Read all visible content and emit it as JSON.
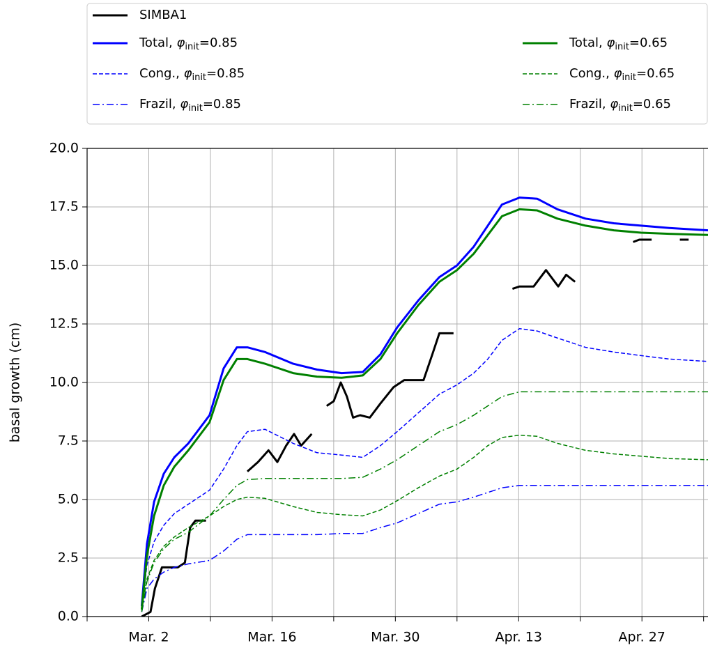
{
  "chart_data": {
    "type": "line",
    "ylabel": "basal growth (cm)",
    "xlim": [
      54,
      124.5
    ],
    "xticks": [
      {
        "value": 61,
        "label": "Mar. 2"
      },
      {
        "value": 75,
        "label": "Mar. 16"
      },
      {
        "value": 89,
        "label": "Mar. 30"
      },
      {
        "value": 103,
        "label": "Apr. 13"
      },
      {
        "value": 117,
        "label": "Apr. 27"
      }
    ],
    "xminorticks": [
      54,
      68,
      82,
      96,
      110,
      124
    ],
    "ylim": [
      0,
      20
    ],
    "yticks": [
      {
        "value": 0,
        "label": "0.0"
      },
      2.5,
      {
        "value": 5,
        "label": "5.0"
      },
      7.5,
      {
        "value": 10,
        "label": "10.0"
      },
      12.5,
      {
        "value": 15,
        "label": "15.0"
      },
      17.5,
      {
        "value": 20,
        "label": "20.0"
      }
    ],
    "grid": true,
    "legend": "top",
    "series": [
      {
        "name": "SIMBA1",
        "color": "#000000",
        "linestyle": "solid",
        "x": [
          60.2,
          61.2,
          61.7,
          62.5,
          64.3,
          65.1,
          65.7,
          66.3,
          67.5,
          null,
          72.2,
          73.4,
          74.6,
          75.6,
          76.6,
          77.5,
          78.3,
          79.5,
          null,
          81.2,
          82.0,
          82.8,
          83.5,
          84.2,
          85.0,
          86.1,
          87.3,
          88.8,
          90.0,
          92.2,
          93.2,
          94.0,
          95.6,
          null,
          102.3,
          103.1,
          104.7,
          106.1,
          107.5,
          108.4,
          109.4,
          null,
          116.0,
          116.7,
          118.1,
          null,
          121.3,
          122.3
        ],
        "values": [
          0.0,
          0.2,
          1.2,
          2.1,
          2.1,
          2.3,
          3.8,
          4.1,
          4.1,
          null,
          6.2,
          6.6,
          7.1,
          6.6,
          7.3,
          7.8,
          7.3,
          7.8,
          null,
          9.0,
          9.2,
          10.0,
          9.4,
          8.5,
          8.6,
          8.5,
          9.1,
          9.8,
          10.1,
          10.1,
          11.2,
          12.1,
          12.1,
          null,
          14.0,
          14.1,
          14.1,
          14.8,
          14.1,
          14.6,
          14.3,
          null,
          16.0,
          16.1,
          16.1,
          null,
          16.1,
          16.1
        ]
      },
      {
        "name": "Total, φinit=0.85",
        "color": "#0000ff",
        "linestyle": "solid",
        "x": [
          60.2,
          60.8,
          61.6,
          62.7,
          63.9,
          65.5,
          67.9,
          69.5,
          71.0,
          72.2,
          74.2,
          77.4,
          80.1,
          82.9,
          85.3,
          87.3,
          89.2,
          91.6,
          94.0,
          96.0,
          97.9,
          99.5,
          101.1,
          103.1,
          105.1,
          107.4,
          110.6,
          113.8,
          116.9,
          120.1,
          124.5
        ],
        "values": [
          0.45,
          3.1,
          4.9,
          6.1,
          6.8,
          7.4,
          8.6,
          10.6,
          11.5,
          11.5,
          11.3,
          10.8,
          10.55,
          10.4,
          10.45,
          11.2,
          12.35,
          13.5,
          14.5,
          15.0,
          15.8,
          16.7,
          17.6,
          17.9,
          17.85,
          17.4,
          17.0,
          16.8,
          16.7,
          16.6,
          16.5
        ]
      },
      {
        "name": "Cong., φinit=0.85",
        "color": "#0000ff",
        "linestyle": "dashed",
        "x": [
          60.2,
          60.8,
          61.6,
          62.7,
          63.9,
          65.5,
          67.9,
          69.5,
          71.0,
          72.2,
          74.2,
          77.4,
          80.1,
          82.9,
          85.3,
          87.3,
          89.2,
          91.6,
          94.0,
          96.0,
          97.9,
          99.5,
          101.1,
          103.1,
          105.1,
          107.4,
          110.6,
          113.8,
          116.9,
          120.1,
          124.5
        ],
        "values": [
          0.3,
          2.2,
          3.2,
          3.9,
          4.4,
          4.8,
          5.4,
          6.3,
          7.3,
          7.9,
          8.0,
          7.4,
          7.0,
          6.9,
          6.8,
          7.3,
          7.9,
          8.7,
          9.5,
          9.9,
          10.4,
          11.0,
          11.8,
          12.3,
          12.2,
          11.9,
          11.5,
          11.3,
          11.15,
          11.0,
          10.9
        ]
      },
      {
        "name": "Frazil, φinit=0.85",
        "color": "#0000ff",
        "linestyle": "dashdot",
        "x": [
          60.2,
          60.8,
          61.6,
          62.7,
          63.9,
          65.5,
          67.9,
          69.5,
          71.0,
          72.2,
          74.2,
          77.4,
          80.1,
          82.9,
          85.3,
          87.3,
          89.2,
          91.6,
          94.0,
          96.0,
          97.9,
          99.5,
          101.1,
          103.1,
          105.1,
          107.4,
          110.6,
          113.8,
          116.9,
          120.1,
          124.5
        ],
        "values": [
          0.2,
          1.2,
          1.6,
          1.9,
          2.1,
          2.25,
          2.4,
          2.8,
          3.3,
          3.5,
          3.5,
          3.5,
          3.5,
          3.55,
          3.55,
          3.8,
          4.0,
          4.4,
          4.8,
          4.9,
          5.1,
          5.3,
          5.5,
          5.6,
          5.6,
          5.6,
          5.6,
          5.6,
          5.6,
          5.6,
          5.6
        ]
      },
      {
        "name": "Total, φinit=0.65",
        "color": "#008000",
        "linestyle": "solid",
        "x": [
          60.2,
          60.8,
          61.6,
          62.7,
          63.9,
          65.5,
          67.9,
          69.5,
          71.0,
          72.2,
          74.2,
          77.4,
          80.1,
          82.9,
          85.3,
          87.3,
          89.2,
          91.6,
          94.0,
          96.0,
          97.9,
          99.5,
          101.1,
          103.1,
          105.1,
          107.4,
          110.6,
          113.8,
          116.9,
          120.1,
          124.5
        ],
        "values": [
          0.3,
          2.6,
          4.3,
          5.6,
          6.4,
          7.1,
          8.3,
          10.1,
          11.0,
          11.0,
          10.8,
          10.4,
          10.25,
          10.2,
          10.3,
          11.0,
          12.1,
          13.3,
          14.3,
          14.8,
          15.5,
          16.3,
          17.1,
          17.4,
          17.35,
          17.0,
          16.7,
          16.5,
          16.4,
          16.35,
          16.3
        ]
      },
      {
        "name": "Cong., φinit=0.65",
        "color": "#008000",
        "linestyle": "dashed",
        "x": [
          60.2,
          60.8,
          61.6,
          62.7,
          63.9,
          65.5,
          67.9,
          69.5,
          71.0,
          72.2,
          74.2,
          77.4,
          80.1,
          82.9,
          85.3,
          87.3,
          89.2,
          91.6,
          94.0,
          96.0,
          97.9,
          99.5,
          101.1,
          103.1,
          105.1,
          107.4,
          110.6,
          113.8,
          116.9,
          120.1,
          124.5
        ],
        "values": [
          0.25,
          1.6,
          2.4,
          3.0,
          3.4,
          3.8,
          4.3,
          4.7,
          5.0,
          5.1,
          5.05,
          4.7,
          4.45,
          4.35,
          4.3,
          4.55,
          4.95,
          5.5,
          6.0,
          6.3,
          6.8,
          7.3,
          7.65,
          7.75,
          7.7,
          7.4,
          7.1,
          6.95,
          6.85,
          6.75,
          6.7
        ]
      },
      {
        "name": "Frazil, φinit=0.65",
        "color": "#008000",
        "linestyle": "dashdot",
        "x": [
          60.2,
          60.8,
          61.6,
          62.7,
          63.9,
          65.5,
          67.9,
          69.5,
          71.0,
          72.2,
          74.2,
          77.4,
          80.1,
          82.9,
          85.3,
          87.3,
          89.2,
          91.6,
          94.0,
          96.0,
          97.9,
          99.5,
          101.1,
          103.1,
          105.1,
          107.4,
          110.6,
          113.8,
          116.9,
          120.1,
          124.5
        ],
        "values": [
          0.2,
          1.5,
          2.3,
          2.9,
          3.3,
          3.6,
          4.3,
          5.0,
          5.6,
          5.85,
          5.9,
          5.9,
          5.9,
          5.9,
          5.95,
          6.3,
          6.7,
          7.3,
          7.9,
          8.2,
          8.6,
          9.0,
          9.4,
          9.6,
          9.6,
          9.6,
          9.6,
          9.6,
          9.6,
          9.6,
          9.6
        ]
      }
    ]
  }
}
